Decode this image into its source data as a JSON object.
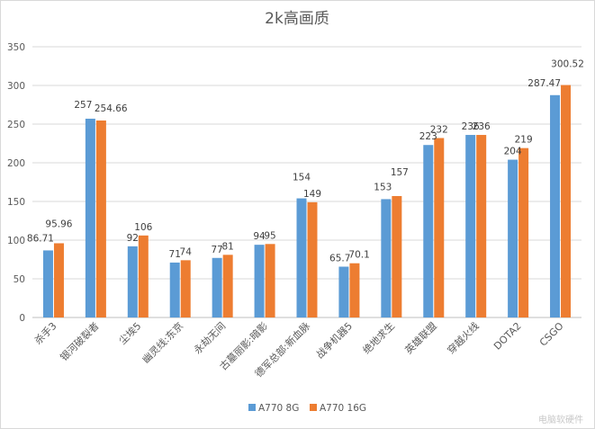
{
  "chart_data": {
    "type": "bar",
    "title": "2k高画质",
    "categories": [
      "杀手3",
      "银河破裂者",
      "尘埃5",
      "幽灵线:东京",
      "永劫无间",
      "古墓丽影:暗影",
      "德军总部:新血脉",
      "战争机器5",
      "绝地求生",
      "英雄联盟",
      "穿越火线",
      "DOTA2",
      "CSGO"
    ],
    "series": [
      {
        "name": "A770 8G",
        "color": "#5b9bd5",
        "values": [
          86.71,
          257,
          92,
          71,
          77,
          94,
          154,
          65.7,
          153,
          223,
          236,
          204,
          287.47
        ]
      },
      {
        "name": "A770 16G",
        "color": "#ed7d31",
        "values": [
          95.96,
          254.66,
          106,
          74,
          81,
          95,
          149,
          70.1,
          157,
          232,
          236,
          219,
          300.52
        ]
      }
    ],
    "value_labels": [
      [
        "86.71",
        "257",
        "92",
        "71",
        "77",
        "94",
        "154",
        "65.7",
        "153",
        "223",
        "236",
        "204",
        "287.47"
      ],
      [
        "95.96",
        "254.66",
        "106",
        "74",
        "81",
        "95",
        "149",
        "70.1",
        "157",
        "232",
        "236",
        "219",
        "300.52"
      ]
    ],
    "ylim": [
      0,
      350
    ],
    "yticks": [
      0,
      50,
      100,
      150,
      200,
      250,
      300,
      350
    ],
    "grid": true,
    "legend_position": "bottom"
  },
  "watermark": "电脑软硬件"
}
